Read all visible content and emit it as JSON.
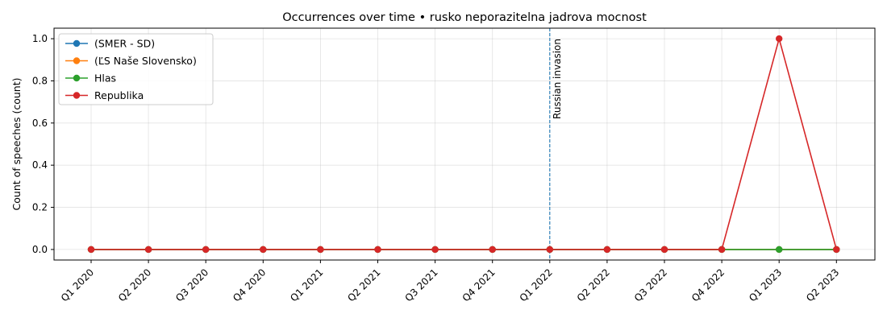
{
  "chart_data": {
    "type": "line",
    "title": "Occurrences over time • rusko neporazitelna jadrova mocnost",
    "xlabel": "",
    "ylabel": "Count of speeches (count)",
    "categories": [
      "Q1 2020",
      "Q2 2020",
      "Q3 2020",
      "Q4 2020",
      "Q1 2021",
      "Q2 2021",
      "Q3 2021",
      "Q4 2021",
      "Q1 2022",
      "Q2 2022",
      "Q3 2022",
      "Q4 2022",
      "Q1 2023",
      "Q2 2023"
    ],
    "ylim": [
      -0.05,
      1.05
    ],
    "yticks": [
      0.0,
      0.2,
      0.4,
      0.6,
      0.8,
      1.0
    ],
    "ytick_labels": [
      "0.0",
      "0.2",
      "0.4",
      "0.6",
      "0.8",
      "1.0"
    ],
    "grid": true,
    "legend_position": "top-left",
    "series": [
      {
        "name": "(SMER - SD)",
        "color": "#1f77b4",
        "values": [
          0,
          0,
          0,
          0,
          0,
          0,
          0,
          0,
          0,
          0,
          0,
          0,
          0,
          0
        ]
      },
      {
        "name": "(ĽS Naše Slovensko)",
        "color": "#ff7f0e",
        "values": [
          0,
          0,
          0,
          0,
          0,
          0,
          0,
          0,
          0,
          0,
          0,
          0,
          0,
          0
        ]
      },
      {
        "name": "Hlas",
        "color": "#2ca02c",
        "values": [
          0,
          0,
          0,
          0,
          0,
          0,
          0,
          0,
          0,
          0,
          0,
          0,
          0,
          0
        ]
      },
      {
        "name": "Republika",
        "color": "#d62728",
        "values": [
          0,
          0,
          0,
          0,
          0,
          0,
          0,
          0,
          0,
          0,
          0,
          0,
          1,
          0
        ]
      }
    ],
    "annotations": [
      {
        "text": "Russian invasion",
        "x": "Q1 2022",
        "style": "dashed",
        "color": "#1f77b4"
      }
    ]
  }
}
